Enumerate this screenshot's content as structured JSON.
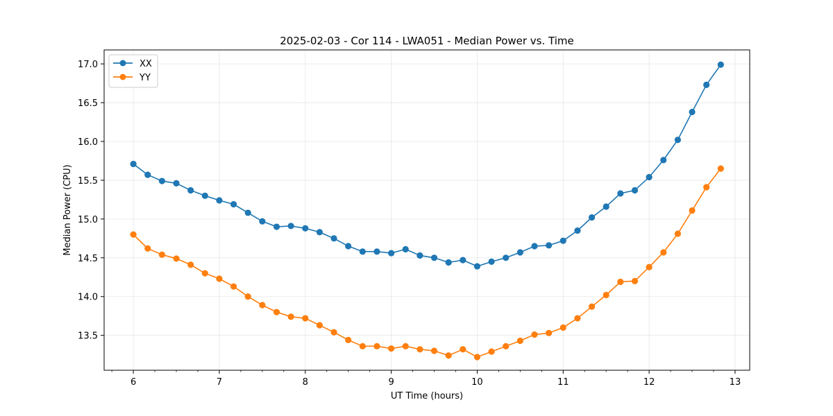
{
  "chart_data": {
    "type": "line",
    "title": "2025-02-03 - Cor 114 - LWA051 - Median Power vs. Time",
    "xlabel": "UT Time (hours)",
    "ylabel": "Median Power (CPU)",
    "xlim": [
      5.66,
      13.17
    ],
    "ylim": [
      13.05,
      17.18
    ],
    "x_ticks": [
      "6",
      "7",
      "8",
      "9",
      "10",
      "11",
      "12",
      "13"
    ],
    "y_ticks": [
      "13.5",
      "14.0",
      "14.5",
      "15.0",
      "15.5",
      "16.0",
      "16.5",
      "17.0"
    ],
    "grid": true,
    "legend_position": "upper-left",
    "x": [
      6.0,
      6.1667,
      6.3333,
      6.5,
      6.6667,
      6.8333,
      7.0,
      7.1667,
      7.3333,
      7.5,
      7.6667,
      7.8333,
      8.0,
      8.1667,
      8.3333,
      8.5,
      8.6667,
      8.8333,
      9.0,
      9.1667,
      9.3333,
      9.5,
      9.6667,
      9.8333,
      10.0,
      10.1667,
      10.3333,
      10.5,
      10.6667,
      10.8333,
      11.0,
      11.1667,
      11.3333,
      11.5,
      11.6667,
      11.8333,
      12.0,
      12.1667,
      12.3333,
      12.5,
      12.6667,
      12.8333
    ],
    "series": [
      {
        "name": "XX",
        "color": "#1f77b4",
        "values": [
          15.71,
          15.57,
          15.49,
          15.46,
          15.37,
          15.3,
          15.24,
          15.19,
          15.08,
          14.97,
          14.9,
          14.91,
          14.88,
          14.83,
          14.75,
          14.65,
          14.58,
          14.58,
          14.56,
          14.61,
          14.53,
          14.5,
          14.44,
          14.47,
          14.39,
          14.45,
          14.5,
          14.57,
          14.65,
          14.66,
          14.72,
          14.85,
          15.02,
          15.16,
          15.33,
          15.37,
          15.54,
          15.76,
          16.02,
          16.38,
          16.73,
          16.99
        ]
      },
      {
        "name": "YY",
        "color": "#ff7f0e",
        "values": [
          14.8,
          14.62,
          14.54,
          14.49,
          14.41,
          14.3,
          14.23,
          14.13,
          14.0,
          13.89,
          13.8,
          13.74,
          13.72,
          13.63,
          13.54,
          13.44,
          13.36,
          13.36,
          13.33,
          13.36,
          13.32,
          13.3,
          13.24,
          13.32,
          13.22,
          13.29,
          13.36,
          13.43,
          13.51,
          13.53,
          13.6,
          13.72,
          13.87,
          14.02,
          14.19,
          14.2,
          14.38,
          14.57,
          14.81,
          15.11,
          15.41,
          15.65
        ]
      }
    ]
  }
}
